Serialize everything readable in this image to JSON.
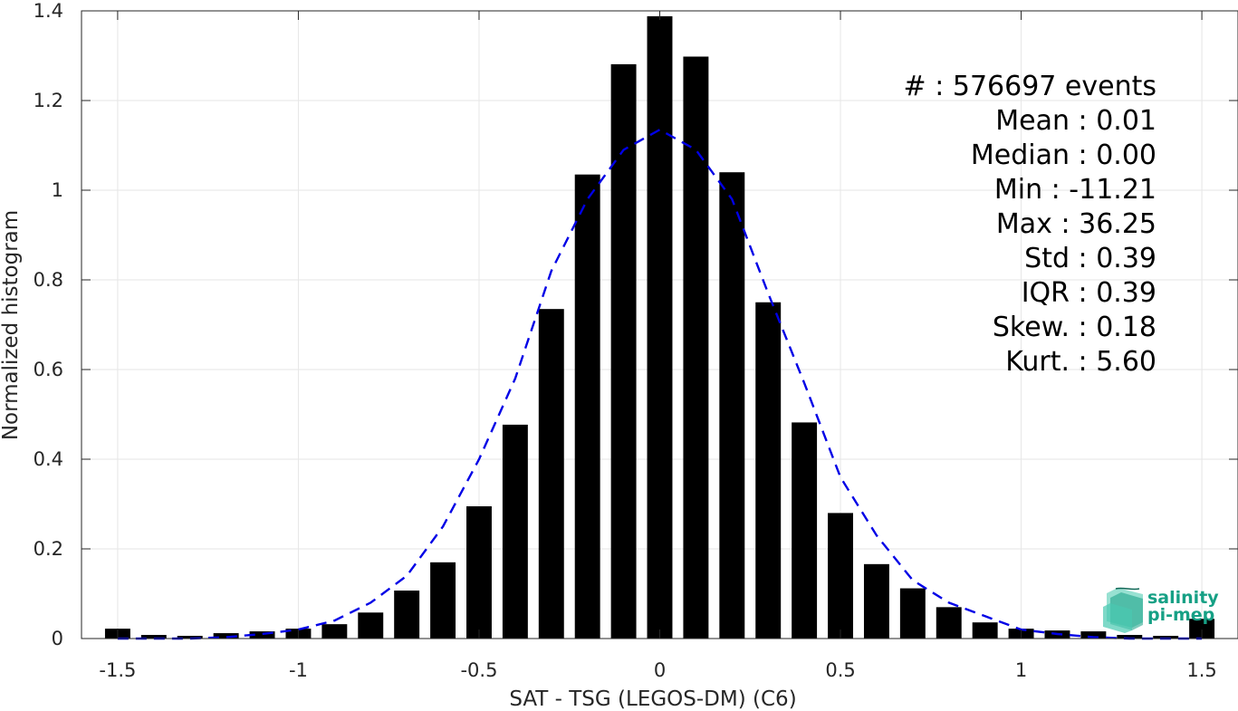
{
  "chart_data": {
    "type": "bar",
    "title": "",
    "xlabel": "SAT - TSG (LEGOS-DM) (C6)",
    "ylabel": "Normalized histogram",
    "xlim": [
      -1.6,
      1.6
    ],
    "ylim": [
      0,
      1.4
    ],
    "grid": true,
    "x_ticks": [
      -1.5,
      -1,
      -0.5,
      0,
      0.5,
      1,
      1.5
    ],
    "x_tick_labels": [
      "-1.5",
      "-1",
      "-0.5",
      "0",
      "0.5",
      "1",
      "1.5"
    ],
    "y_ticks": [
      0,
      0.2,
      0.4,
      0.6,
      0.8,
      1,
      1.2,
      1.4
    ],
    "y_tick_labels": [
      "0",
      "0.2",
      "0.4",
      "0.6",
      "0.8",
      "1",
      "1.2",
      "1.4"
    ],
    "bar_width": 0.07,
    "bar_color": "#000000",
    "series": [
      {
        "type": "bar",
        "x": [
          -1.5,
          -1.4,
          -1.3,
          -1.2,
          -1.1,
          -1.0,
          -0.9,
          -0.8,
          -0.7,
          -0.6,
          -0.5,
          -0.4,
          -0.3,
          -0.2,
          -0.1,
          0.0,
          0.1,
          0.2,
          0.3,
          0.4,
          0.5,
          0.6,
          0.7,
          0.8,
          0.9,
          1.0,
          1.1,
          1.2,
          1.3,
          1.4,
          1.5
        ],
        "values": [
          0.022,
          0.008,
          0.006,
          0.012,
          0.016,
          0.022,
          0.032,
          0.058,
          0.107,
          0.17,
          0.295,
          0.477,
          0.735,
          1.035,
          1.281,
          1.388,
          1.298,
          1.04,
          0.75,
          0.482,
          0.28,
          0.166,
          0.112,
          0.07,
          0.036,
          0.022,
          0.018,
          0.016,
          0.008,
          0.006,
          0.044
        ]
      },
      {
        "type": "line",
        "style": "dashed",
        "color": "#0000e6",
        "x": [
          -1.5,
          -1.4,
          -1.3,
          -1.2,
          -1.1,
          -1.0,
          -0.9,
          -0.8,
          -0.7,
          -0.6,
          -0.5,
          -0.4,
          -0.3,
          -0.2,
          -0.1,
          0.0,
          0.1,
          0.2,
          0.3,
          0.4,
          0.5,
          0.6,
          0.7,
          0.8,
          0.9,
          1.0,
          1.1,
          1.2,
          1.3,
          1.4,
          1.5
        ],
        "values": [
          0.0,
          0.0,
          0.0,
          0.003,
          0.01,
          0.02,
          0.04,
          0.08,
          0.14,
          0.25,
          0.4,
          0.58,
          0.82,
          0.98,
          1.09,
          1.135,
          1.09,
          0.98,
          0.77,
          0.57,
          0.36,
          0.23,
          0.13,
          0.08,
          0.05,
          0.02,
          0.01,
          0.003,
          0.0,
          0.0,
          0.0
        ]
      }
    ],
    "stats": [
      {
        "label": "#  ",
        "value": ": 576697 events"
      },
      {
        "label": "Mean ",
        "value": ": 0.01"
      },
      {
        "label": "Median ",
        "value": ": 0.00"
      },
      {
        "label": "Min ",
        "value": ": -11.21"
      },
      {
        "label": "Max ",
        "value": ": 36.25"
      },
      {
        "label": "Std ",
        "value": ": 0.39"
      },
      {
        "label": "IQR ",
        "value": ": 0.39"
      },
      {
        "label": "Skew. ",
        "value": ": 0.18"
      },
      {
        "label": "Kurt. ",
        "value": ": 5.60"
      }
    ]
  },
  "logo": {
    "line1": "salinity",
    "line2": "pi-mep",
    "color": "#16a085"
  }
}
